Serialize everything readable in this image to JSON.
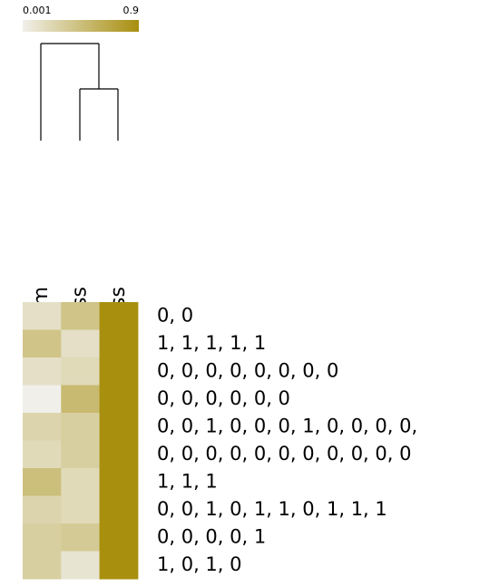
{
  "chart_data": {
    "type": "heatmap",
    "columns": [
      "Neuroticism",
      "Openness",
      "Agreeableness"
    ],
    "rows": [
      "0, 0",
      "1, 1, 1, 1, 1",
      "0, 0, 0, 0, 0, 0, 0, 0",
      "0, 0, 0, 0, 0, 0",
      "0, 0, 1, 0, 0, 0, 1, 0, 0, 0, 0,",
      "0, 0, 0, 0, 0, 0, 0, 0, 0, 0, 0",
      "1, 1, 1",
      "0, 0, 1, 0, 1, 1, 0, 1, 1, 1",
      "0, 0, 0, 0, 1",
      "1, 0, 1, 0"
    ],
    "z": [
      [
        0.15,
        0.4,
        0.9
      ],
      [
        0.4,
        0.15,
        0.9
      ],
      [
        0.15,
        0.2,
        0.9
      ],
      [
        0.001,
        0.5,
        0.9
      ],
      [
        0.25,
        0.3,
        0.9
      ],
      [
        0.2,
        0.3,
        0.9
      ],
      [
        0.45,
        0.2,
        0.9
      ],
      [
        0.25,
        0.2,
        0.9
      ],
      [
        0.3,
        0.35,
        0.9
      ],
      [
        0.3,
        0.1,
        0.9
      ]
    ],
    "zlim": [
      0.001,
      0.9
    ],
    "colorscale": [
      "#f0efea",
      "#a88f0e"
    ]
  }
}
